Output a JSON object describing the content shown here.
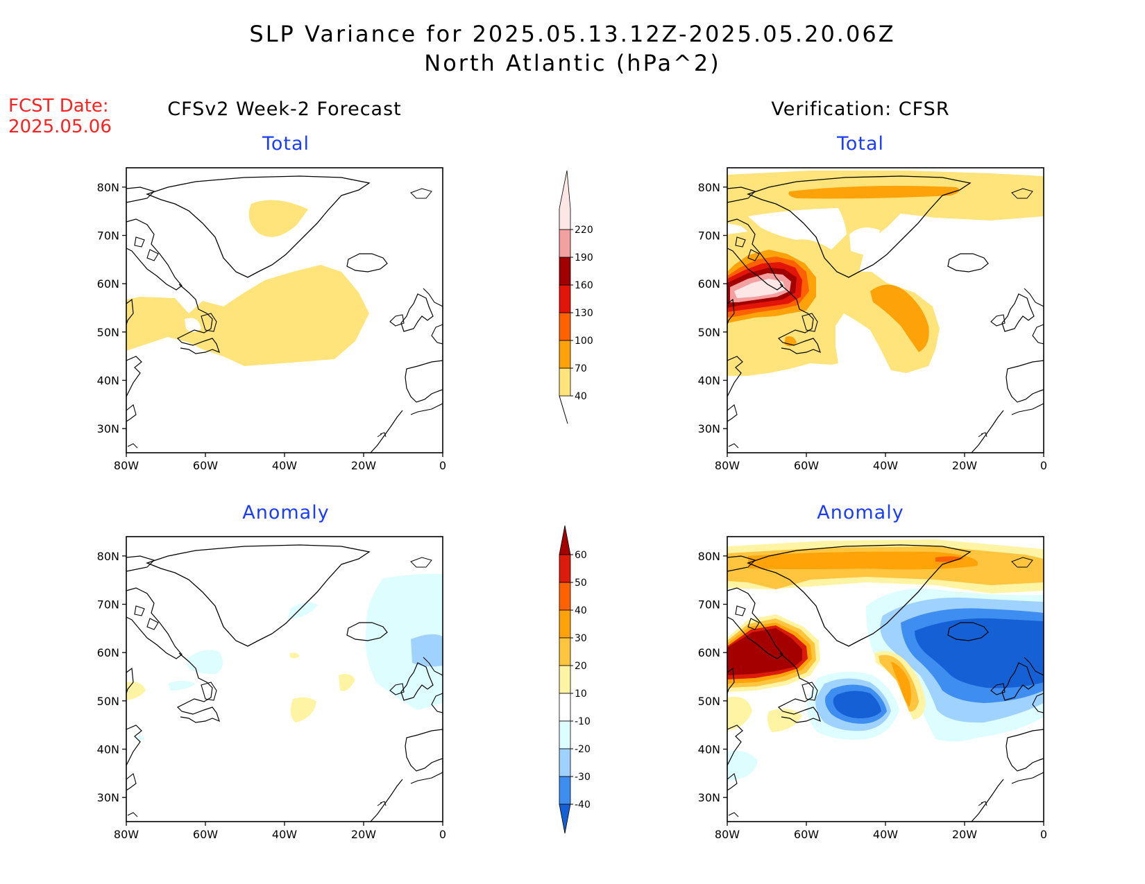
{
  "header": {
    "title_line1": "SLP Variance for 2025.05.13.12Z-2025.05.20.06Z",
    "title_line2": "North Atlantic (hPa^2)",
    "fcst_label": "FCST Date:",
    "fcst_date": "2025.05.06"
  },
  "columns": {
    "left": "CFSv2 Week-2 Forecast",
    "right": "Verification: CFSR"
  },
  "panels": {
    "top_sub": "Total",
    "bottom_sub": "Anomaly"
  },
  "axes": {
    "lat_labels": [
      "80N",
      "70N",
      "60N",
      "50N",
      "40N",
      "30N"
    ],
    "lat_values": [
      80,
      70,
      60,
      50,
      40,
      30
    ],
    "lon_labels": [
      "80W",
      "60W",
      "40W",
      "20W",
      "0"
    ],
    "lon_values": [
      -80,
      -60,
      -40,
      -20,
      0
    ],
    "lat_range": [
      25,
      84
    ],
    "lon_range": [
      -80,
      0
    ]
  },
  "colorbars": {
    "total": {
      "levels": [
        "40",
        "70",
        "100",
        "130",
        "160",
        "190",
        "220"
      ],
      "colors": [
        "#fee47b",
        "#fea20a",
        "#fe6200",
        "#e21508",
        "#a20000",
        "#f4a0a0",
        "#fde6e6"
      ]
    },
    "anomaly": {
      "levels": [
        "60",
        "50",
        "40",
        "30",
        "20",
        "10",
        "-10",
        "-20",
        "-30",
        "-40"
      ],
      "colors": [
        "#a50000",
        "#dc1b0b",
        "#fe6200",
        "#ffa308",
        "#ffc53f",
        "#fff4a3",
        "#ffffff",
        "#ddfdff",
        "#a0d2ff",
        "#3e8df0",
        "#1460d4"
      ]
    }
  }
}
